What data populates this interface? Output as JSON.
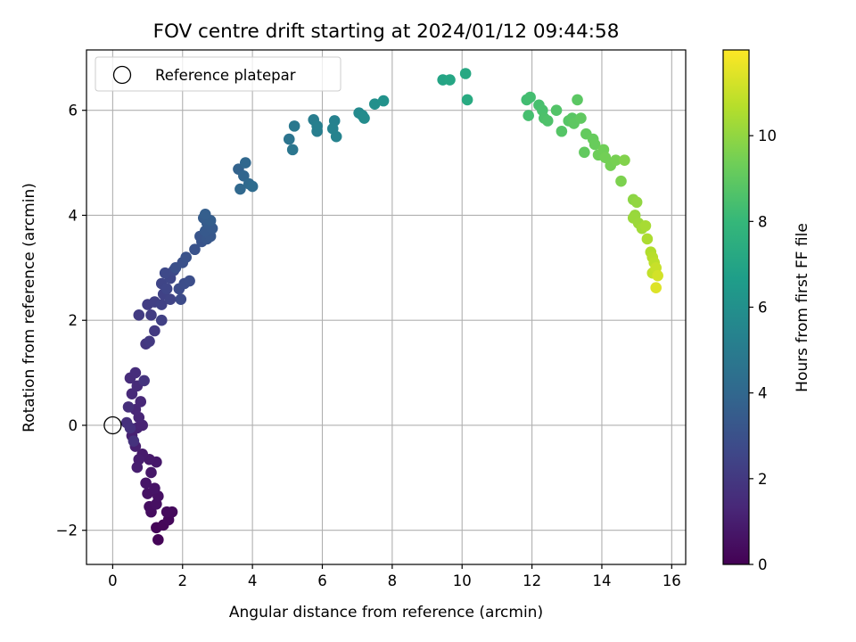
{
  "chart_data": {
    "type": "scatter",
    "title": "FOV centre drift starting at 2024/01/12 09:44:58",
    "xlabel": "Angular distance from reference (arcmin)",
    "ylabel": "Rotation from reference (arcmin)",
    "xlim": [
      -0.75,
      16.4
    ],
    "ylim": [
      -2.65,
      7.15
    ],
    "x_ticks": [
      0,
      2,
      4,
      6,
      8,
      10,
      12,
      14,
      16
    ],
    "y_ticks": [
      -2,
      0,
      2,
      4,
      6
    ],
    "x_tick_labels": [
      "0",
      "2",
      "4",
      "6",
      "8",
      "10",
      "12",
      "14",
      "16"
    ],
    "y_tick_labels": [
      "−2",
      "0",
      "2",
      "4",
      "6"
    ],
    "grid": true,
    "legend": {
      "placement": "top-left",
      "entries": [
        {
          "label": "Reference platepar",
          "marker": "open-circle"
        }
      ]
    },
    "reference_point": {
      "x": 0,
      "y": 0
    },
    "colorbar": {
      "label": "Hours from first FF file",
      "range": [
        0,
        12
      ],
      "ticks": [
        0,
        2,
        4,
        6,
        8,
        10
      ],
      "tick_labels": [
        "0",
        "2",
        "4",
        "6",
        "8",
        "10"
      ],
      "colormap": "viridis",
      "colormap_stops": [
        "#440154",
        "#482878",
        "#3e4989",
        "#31688e",
        "#26828e",
        "#1f9e89",
        "#35b779",
        "#6ece58",
        "#b5de2b",
        "#fde725"
      ]
    },
    "points": [
      [
        1.3,
        -2.18,
        0.1
      ],
      [
        1.25,
        -1.95,
        0.15
      ],
      [
        1.45,
        -1.9,
        0.2
      ],
      [
        1.6,
        -1.8,
        0.25
      ],
      [
        1.7,
        -1.65,
        0.3
      ],
      [
        1.55,
        -1.65,
        0.35
      ],
      [
        1.1,
        -1.65,
        0.4
      ],
      [
        1.05,
        -1.55,
        0.45
      ],
      [
        1.25,
        -1.5,
        0.5
      ],
      [
        1.3,
        -1.35,
        0.55
      ],
      [
        1.0,
        -1.3,
        0.6
      ],
      [
        1.2,
        -1.2,
        0.65
      ],
      [
        0.95,
        -1.1,
        0.7
      ],
      [
        1.1,
        -0.9,
        0.75
      ],
      [
        1.25,
        -0.7,
        0.8
      ],
      [
        1.05,
        -0.65,
        0.85
      ],
      [
        0.85,
        -0.55,
        0.9
      ],
      [
        0.75,
        -0.65,
        0.95
      ],
      [
        0.7,
        -0.8,
        1.0
      ],
      [
        0.65,
        -0.4,
        1.05
      ],
      [
        0.55,
        -0.2,
        1.1
      ],
      [
        0.7,
        -0.05,
        1.15
      ],
      [
        0.85,
        0.0,
        1.2
      ],
      [
        0.75,
        0.15,
        1.25
      ],
      [
        0.65,
        0.3,
        1.3
      ],
      [
        0.8,
        0.45,
        1.35
      ],
      [
        0.55,
        0.6,
        1.4
      ],
      [
        0.7,
        0.75,
        1.45
      ],
      [
        0.5,
        0.9,
        1.5
      ],
      [
        0.65,
        1.0,
        1.55
      ],
      [
        0.45,
        0.35,
        1.6
      ],
      [
        0.4,
        0.05,
        1.65
      ],
      [
        0.5,
        -0.05,
        1.7
      ],
      [
        0.6,
        -0.3,
        1.75
      ],
      [
        0.9,
        0.85,
        1.8
      ],
      [
        0.95,
        1.55,
        1.9
      ],
      [
        1.05,
        1.6,
        2.0
      ],
      [
        1.2,
        1.8,
        2.05
      ],
      [
        0.75,
        2.1,
        2.1
      ],
      [
        1.1,
        2.1,
        2.15
      ],
      [
        1.0,
        2.3,
        2.2
      ],
      [
        1.2,
        2.35,
        2.25
      ],
      [
        1.4,
        2.0,
        2.3
      ],
      [
        1.4,
        2.3,
        2.35
      ],
      [
        1.45,
        2.5,
        2.4
      ],
      [
        1.65,
        2.4,
        2.45
      ],
      [
        1.4,
        2.7,
        2.5
      ],
      [
        1.55,
        2.6,
        2.55
      ],
      [
        1.65,
        2.8,
        2.6
      ],
      [
        1.5,
        2.9,
        2.65
      ],
      [
        1.75,
        2.95,
        2.7
      ],
      [
        1.95,
        2.4,
        2.75
      ],
      [
        1.9,
        2.6,
        2.8
      ],
      [
        2.05,
        2.7,
        2.85
      ],
      [
        2.2,
        2.75,
        2.9
      ],
      [
        1.8,
        3.0,
        2.95
      ],
      [
        2.0,
        3.1,
        3.0
      ],
      [
        2.1,
        3.2,
        3.05
      ],
      [
        2.35,
        3.35,
        3.1
      ],
      [
        2.55,
        3.5,
        3.15
      ],
      [
        2.5,
        3.6,
        3.2
      ],
      [
        2.7,
        3.55,
        3.25
      ],
      [
        2.8,
        3.6,
        3.3
      ],
      [
        2.65,
        3.7,
        3.35
      ],
      [
        2.85,
        3.75,
        3.4
      ],
      [
        2.7,
        3.85,
        3.45
      ],
      [
        2.6,
        3.95,
        3.5
      ],
      [
        2.8,
        3.9,
        3.55
      ],
      [
        2.65,
        4.02,
        3.6
      ],
      [
        3.6,
        4.88,
        3.8
      ],
      [
        3.75,
        4.75,
        3.9
      ],
      [
        3.8,
        5.0,
        4.0
      ],
      [
        3.65,
        4.5,
        4.05
      ],
      [
        3.9,
        4.6,
        4.1
      ],
      [
        4.0,
        4.55,
        4.2
      ],
      [
        5.05,
        5.45,
        4.6
      ],
      [
        5.15,
        5.25,
        4.7
      ],
      [
        5.2,
        5.7,
        4.8
      ],
      [
        5.75,
        5.82,
        5.1
      ],
      [
        5.85,
        5.6,
        5.15
      ],
      [
        5.85,
        5.7,
        5.2
      ],
      [
        6.35,
        5.8,
        5.3
      ],
      [
        6.3,
        5.65,
        5.35
      ],
      [
        6.4,
        5.5,
        5.4
      ],
      [
        7.05,
        5.95,
        5.7
      ],
      [
        7.15,
        5.9,
        5.75
      ],
      [
        7.2,
        5.85,
        5.8
      ],
      [
        7.5,
        6.12,
        6.0
      ],
      [
        7.75,
        6.18,
        6.1
      ],
      [
        9.45,
        6.58,
        7.0
      ],
      [
        9.65,
        6.58,
        7.1
      ],
      [
        10.1,
        6.7,
        7.2
      ],
      [
        10.15,
        6.2,
        7.3
      ],
      [
        11.85,
        6.2,
        8.3
      ],
      [
        11.95,
        6.25,
        8.35
      ],
      [
        11.9,
        5.9,
        8.4
      ],
      [
        12.2,
        6.1,
        8.45
      ],
      [
        12.3,
        6.0,
        8.5
      ],
      [
        12.35,
        5.85,
        8.55
      ],
      [
        12.45,
        5.8,
        8.6
      ],
      [
        12.7,
        6.0,
        8.7
      ],
      [
        12.85,
        5.6,
        8.75
      ],
      [
        13.05,
        5.8,
        8.8
      ],
      [
        13.15,
        5.85,
        8.85
      ],
      [
        13.3,
        6.2,
        8.9
      ],
      [
        13.2,
        5.75,
        8.95
      ],
      [
        13.4,
        5.85,
        9.0
      ],
      [
        13.5,
        5.2,
        9.05
      ],
      [
        13.55,
        5.55,
        9.1
      ],
      [
        13.75,
        5.45,
        9.15
      ],
      [
        13.8,
        5.35,
        9.2
      ],
      [
        13.9,
        5.15,
        9.3
      ],
      [
        14.05,
        5.25,
        9.35
      ],
      [
        14.1,
        5.1,
        9.4
      ],
      [
        14.25,
        4.95,
        9.45
      ],
      [
        14.4,
        5.05,
        9.5
      ],
      [
        14.55,
        4.65,
        9.6
      ],
      [
        14.65,
        5.05,
        9.7
      ],
      [
        14.9,
        4.3,
        9.9
      ],
      [
        15.0,
        4.25,
        10.0
      ],
      [
        14.95,
        4.0,
        10.1
      ],
      [
        14.9,
        3.95,
        10.15
      ],
      [
        15.05,
        3.85,
        10.2
      ],
      [
        15.15,
        3.75,
        10.3
      ],
      [
        15.25,
        3.8,
        10.4
      ],
      [
        15.3,
        3.55,
        10.5
      ],
      [
        15.4,
        3.3,
        10.6
      ],
      [
        15.45,
        3.2,
        10.7
      ],
      [
        15.5,
        3.1,
        10.8
      ],
      [
        15.45,
        2.9,
        10.9
      ],
      [
        15.55,
        3.0,
        11.0
      ],
      [
        15.6,
        2.85,
        11.2
      ],
      [
        15.55,
        2.62,
        11.4
      ]
    ]
  }
}
